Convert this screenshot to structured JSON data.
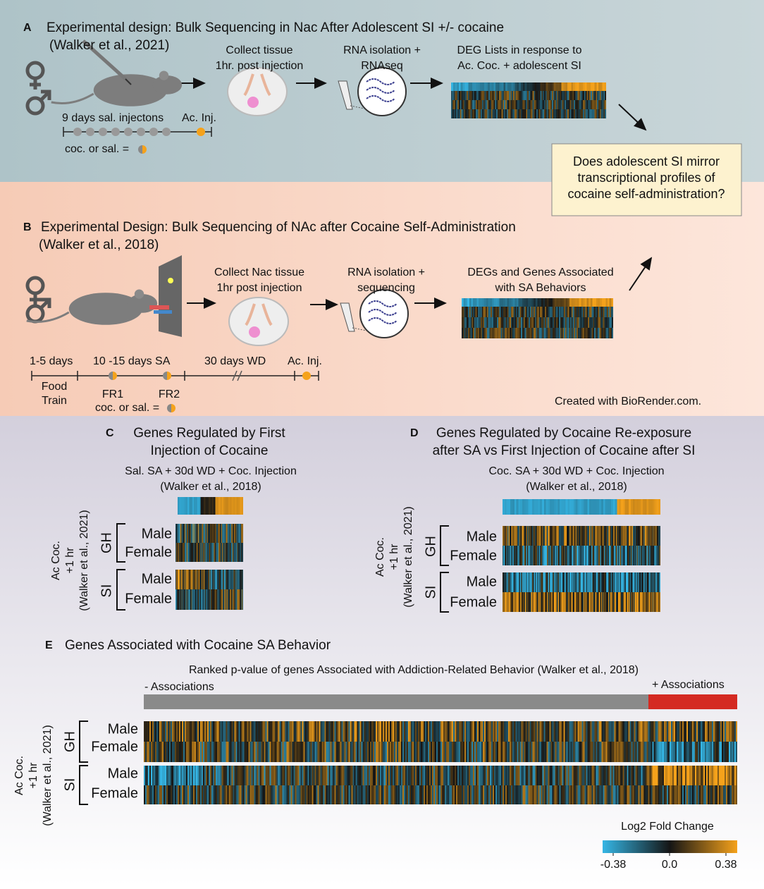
{
  "panel_a": {
    "label": "A",
    "title": "Experimental design: Bulk Sequencing in Nac After Adolescent SI +/- cocaine",
    "citation": "(Walker et al., 2021)",
    "step1": [
      "Collect tissue",
      "1hr. post injection"
    ],
    "step2": [
      "RNA isolation +",
      "RNAseq"
    ],
    "step3": [
      "DEG Lists in response to",
      "Ac. Coc. + adolescent SI"
    ],
    "timeline": "9 days sal. injectons",
    "injection": "Ac. Inj.",
    "legend": "coc. or sal. ="
  },
  "question": [
    "Does adolescent SI mirror",
    "transcriptional profiles of",
    "cocaine self-administration?"
  ],
  "panel_b": {
    "label": "B",
    "title": "Experimental Design: Bulk Sequencing of NAc after Cocaine Self-Administration",
    "citation": "(Walker et al., 2018)",
    "step1": [
      "Collect Nac tissue",
      "1hr post injection"
    ],
    "step2": [
      "RNA isolation +",
      "sequencing"
    ],
    "step3": [
      "DEGs and Genes Associated",
      "with SA Behaviors"
    ],
    "timeline": [
      "1-5 days",
      "10 -15 days SA",
      "30 days WD",
      "Ac. Inj."
    ],
    "food": [
      "Food",
      "Train"
    ],
    "fr1": "FR1",
    "fr2": "FR2",
    "legend": "coc. or sal. =",
    "credit": "Created with BioRender.com."
  },
  "panel_c": {
    "label": "C",
    "title": [
      "Genes Regulated by First",
      "Injection of Cocaine"
    ],
    "subtitle": [
      "Sal. SA + 30d WD + Coc. Injection",
      "(Walker et al., 2018)"
    ],
    "ylabel": [
      "Ac Coc.",
      "+1 hr",
      "(Walker et al., 2021)"
    ],
    "groups": [
      "GH",
      "SI"
    ],
    "rows": [
      "Male",
      "Female"
    ]
  },
  "panel_d": {
    "label": "D",
    "title": [
      "Genes Regulated by Cocaine Re-exposure",
      "after SA vs First Injection of Cocaine after SI"
    ],
    "subtitle": [
      "Coc. SA + 30d WD + Coc. Injection",
      "(Walker et al., 2018)"
    ],
    "ylabel": [
      "Ac Coc.",
      "+1 hr",
      "(Walker et al., 2021)"
    ],
    "groups": [
      "GH",
      "SI"
    ],
    "rows": [
      "Male",
      "Female"
    ]
  },
  "panel_e": {
    "label": "E",
    "title": "Genes Associated with Cocaine SA Behavior",
    "subtitle": "Ranked p-value of genes Associated with Addiction-Related Behavior (Walker et al., 2018)",
    "neg": "- Associations",
    "pos": "+ Associations",
    "ylabel": [
      "Ac Coc.",
      "+1 hr",
      "(Walker et al., 2021)"
    ],
    "groups": [
      "GH",
      "SI"
    ],
    "rows": [
      "Male",
      "Female"
    ]
  },
  "colorbar": {
    "title": "Log2 Fold Change",
    "lim": [
      -0.38,
      0.38
    ],
    "ticks": [
      -0.38,
      {
        "value": 0,
        "label": "0.0"
      },
      0.38
    ]
  }
}
